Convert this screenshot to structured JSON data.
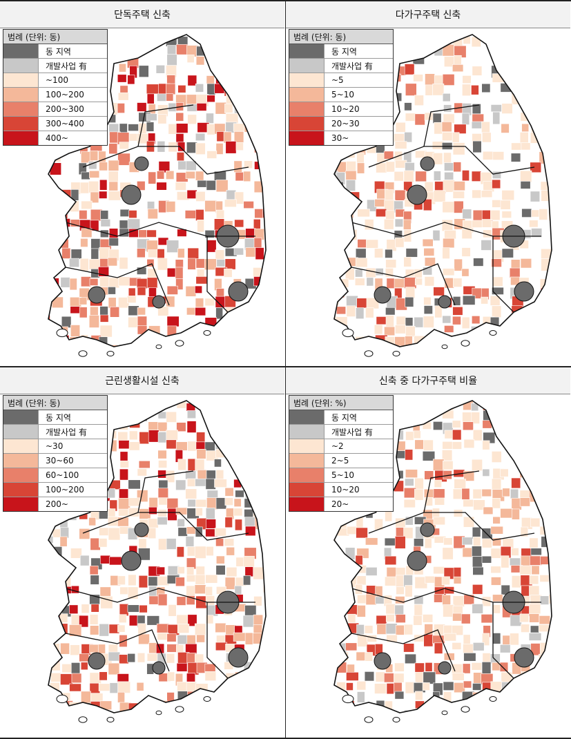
{
  "colors": {
    "dong": "#6b6b6b",
    "dev": "#c8c8c8",
    "c1": "#fde6d2",
    "c2": "#f4b89a",
    "c3": "#e8806a",
    "c4": "#d84536",
    "c5": "#c8141b"
  },
  "panels": [
    {
      "title": "단독주택 신축",
      "legend_title": "범례 (단위: 동)",
      "dong": "동 지역",
      "dev": "개발사업 有",
      "classes": [
        "~100",
        "100~200",
        "200~300",
        "300~400",
        "400~"
      ]
    },
    {
      "title": "다가구주택 신축",
      "legend_title": "범례 (단위: 동)",
      "dong": "동 지역",
      "dev": "개발사업 有",
      "classes": [
        "~5",
        "5~10",
        "10~20",
        "20~30",
        "30~"
      ]
    },
    {
      "title": "근린생활시설 신축",
      "legend_title": "범례 (단위: 동)",
      "dong": "동 지역",
      "dev": "개발사업 有",
      "classes": [
        "~30",
        "30~60",
        "60~100",
        "100~200",
        "200~"
      ]
    },
    {
      "title": "신축 중 다가구주택 비율",
      "legend_title": "범례 (단위: %)",
      "dong": "동 지역",
      "dev": "개발사업 有",
      "classes": [
        "~2",
        "2~5",
        "5~10",
        "10~20",
        "20~"
      ]
    }
  ]
}
